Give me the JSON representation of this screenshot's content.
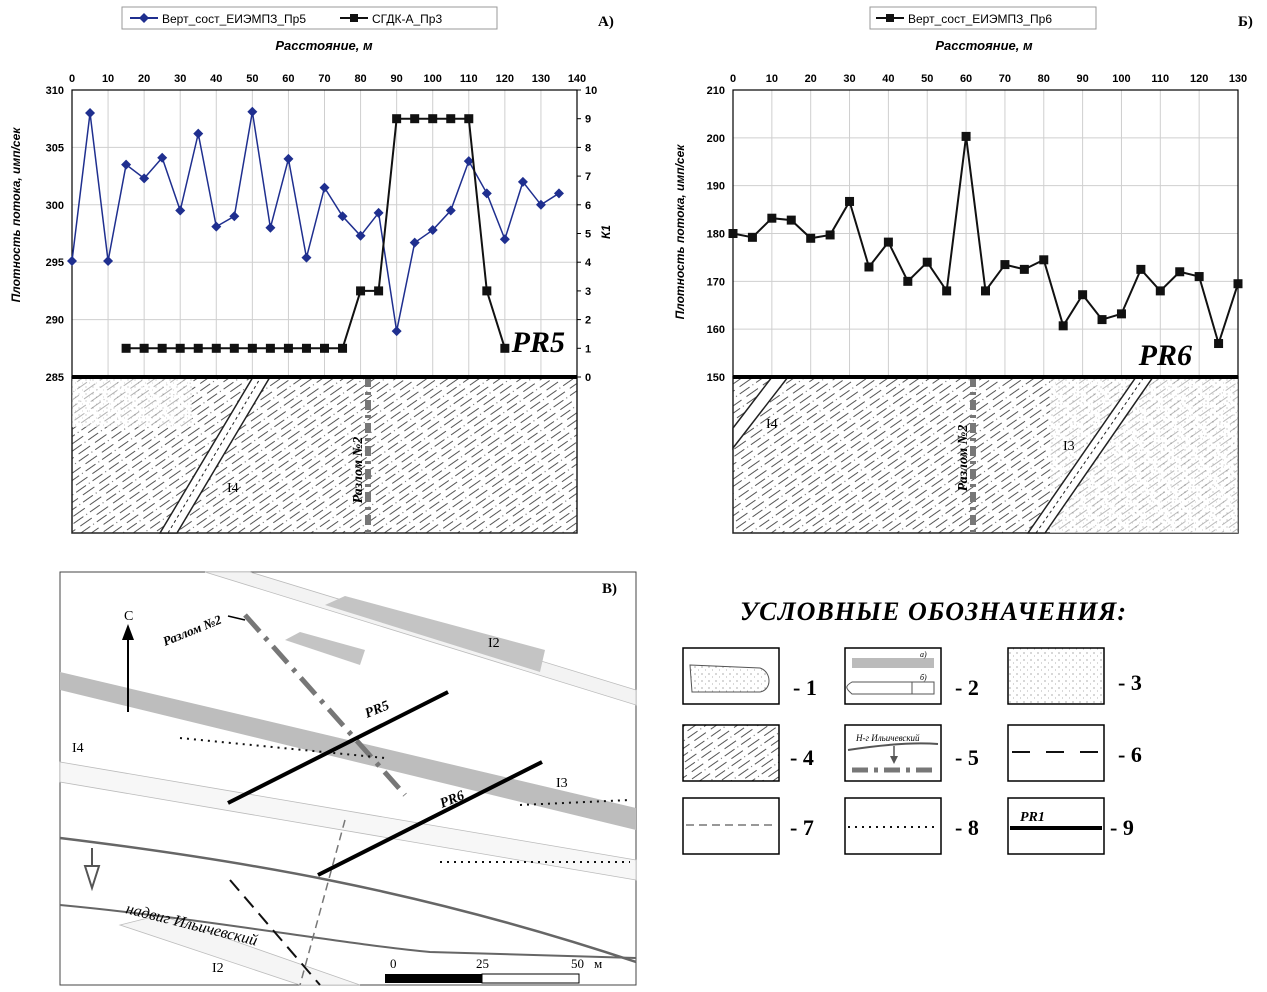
{
  "chart_data": [
    {
      "id": "A",
      "type": "line",
      "panel_label": "А)",
      "profile_label": "PR5",
      "xlabel": "Расстояние, м",
      "ylabel": "Плотность потока, имп/сек",
      "y2label": "К1",
      "xlim": [
        0,
        140
      ],
      "ylim": [
        285,
        310
      ],
      "y2lim": [
        0,
        10
      ],
      "x_ticks": [
        0,
        10,
        20,
        30,
        40,
        50,
        60,
        70,
        80,
        90,
        100,
        110,
        120,
        130,
        140
      ],
      "y_ticks": [
        285,
        290,
        295,
        300,
        305,
        310
      ],
      "y2_ticks": [
        0,
        1,
        2,
        3,
        4,
        5,
        6,
        7,
        8,
        9,
        10
      ],
      "grid": true,
      "legend_position": "top",
      "series": [
        {
          "name": "Верт_сост_ЕИЭМПЗ_Пр5",
          "axis": "left",
          "color": "#1f2f8f",
          "marker": "diamond",
          "x": [
            0,
            5,
            10,
            15,
            20,
            25,
            30,
            35,
            40,
            45,
            50,
            55,
            60,
            65,
            70,
            75,
            80,
            85,
            90,
            95,
            100,
            105,
            110,
            115,
            120,
            125,
            130,
            135
          ],
          "y": [
            295.1,
            308.0,
            295.1,
            303.5,
            302.3,
            304.1,
            299.5,
            306.2,
            298.1,
            299.0,
            308.1,
            298.0,
            304.0,
            295.4,
            301.5,
            299.0,
            297.3,
            299.3,
            289.0,
            296.7,
            297.8,
            299.5,
            303.8,
            301.0,
            297.0,
            302.0,
            300.0,
            301.0
          ]
        },
        {
          "name": "СГДК-А_Пр3",
          "axis": "right",
          "color": "#111111",
          "marker": "square",
          "x": [
            15,
            20,
            25,
            30,
            35,
            40,
            45,
            50,
            55,
            60,
            65,
            70,
            75,
            80,
            85,
            90,
            95,
            100,
            105,
            110,
            115,
            120
          ],
          "y": [
            1,
            1,
            1,
            1,
            1,
            1,
            1,
            1,
            1,
            1,
            1,
            1,
            1,
            3,
            3,
            9,
            9,
            9,
            9,
            9,
            3,
            1
          ]
        }
      ],
      "section_labels": {
        "fault": "Разлом №2",
        "unit": "I4"
      }
    },
    {
      "id": "B",
      "type": "line",
      "panel_label": "Б)",
      "profile_label": "PR6",
      "xlabel": "Расстояние, м",
      "ylabel": "Плотность потока, имп/сек",
      "xlim": [
        0,
        130
      ],
      "ylim": [
        150,
        210
      ],
      "x_ticks": [
        0,
        10,
        20,
        30,
        40,
        50,
        60,
        70,
        80,
        90,
        100,
        110,
        120,
        130
      ],
      "y_ticks": [
        150,
        160,
        170,
        180,
        190,
        200,
        210
      ],
      "grid": true,
      "legend_position": "top",
      "series": [
        {
          "name": "Верт_сост_ЕИЭМПЗ_Пр6",
          "axis": "left",
          "color": "#111111",
          "marker": "square",
          "x": [
            0,
            5,
            10,
            15,
            20,
            25,
            30,
            35,
            40,
            45,
            50,
            55,
            60,
            65,
            70,
            75,
            80,
            85,
            90,
            95,
            100,
            105,
            110,
            115,
            120,
            125,
            130
          ],
          "y": [
            180,
            179.2,
            183.2,
            182.8,
            179.0,
            179.7,
            186.7,
            173.0,
            178.2,
            170.0,
            174.0,
            168.0,
            200.3,
            168.0,
            173.5,
            172.5,
            174.5,
            160.7,
            167.2,
            162.0,
            163.2,
            172.5,
            168.0,
            172.0,
            171.0,
            157.0,
            169.5
          ]
        }
      ],
      "section_labels": {
        "fault": "Разлом №2",
        "unit_left": "I4",
        "unit_right": "I3"
      }
    }
  ],
  "map": {
    "panel_label": "В)",
    "north": "С",
    "fault_label": "Разлом №2",
    "thrust_label": "надвиг Ильичевский",
    "profiles": [
      "PR5",
      "PR6"
    ],
    "unit_labels": [
      "I4",
      "I3",
      "I2",
      "I2"
    ],
    "scale": {
      "ticks": [
        "0",
        "25",
        "50"
      ],
      "unit": "м"
    }
  },
  "legend": {
    "title": "УСЛОВНЫЕ ОБОЗНАЧЕНИЯ:",
    "items": [
      {
        "num": "- 1"
      },
      {
        "num": "- 2",
        "sub_a": "а)",
        "sub_b": "б)"
      },
      {
        "num": "- 3"
      },
      {
        "num": "- 4"
      },
      {
        "num": "- 5",
        "text": "Н-г Ильичевский"
      },
      {
        "num": "- 6"
      },
      {
        "num": "- 7"
      },
      {
        "num": "- 8"
      },
      {
        "num": "- 9",
        "text": "PR1"
      }
    ]
  }
}
